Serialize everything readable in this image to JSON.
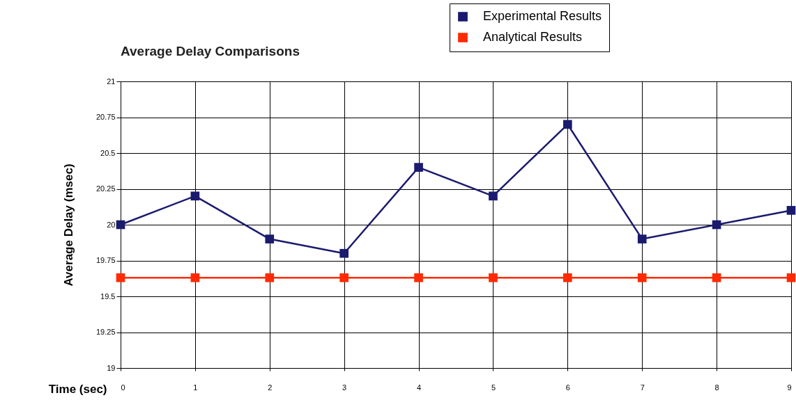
{
  "chart_data": {
    "type": "line",
    "title": "Average Delay Comparisons",
    "xlabel": "Time (sec)",
    "ylabel": "Average Delay (msec)",
    "x": [
      0,
      1,
      2,
      3,
      4,
      5,
      6,
      7,
      8,
      9
    ],
    "series": [
      {
        "name": "Experimental Results",
        "color": "#1a1a6e",
        "values": [
          20,
          20.2,
          19.9,
          19.8,
          20.4,
          20.2,
          20.7,
          19.9,
          20,
          20.1
        ]
      },
      {
        "name": "Analytical Results",
        "color": "#ff2a00",
        "values": [
          19.63,
          19.63,
          19.63,
          19.63,
          19.63,
          19.63,
          19.63,
          19.63,
          19.63,
          19.63
        ]
      }
    ],
    "xlim": [
      0,
      9
    ],
    "xticks": [
      0,
      1,
      2,
      3,
      4,
      5,
      6,
      7,
      8,
      9
    ],
    "ylim": [
      19,
      21
    ],
    "yticks": [
      19,
      19.25,
      19.5,
      19.75,
      20,
      20.25,
      20.5,
      20.75,
      21
    ],
    "grid": true,
    "legend": "top right",
    "marker": "square",
    "line_style": "solid"
  }
}
